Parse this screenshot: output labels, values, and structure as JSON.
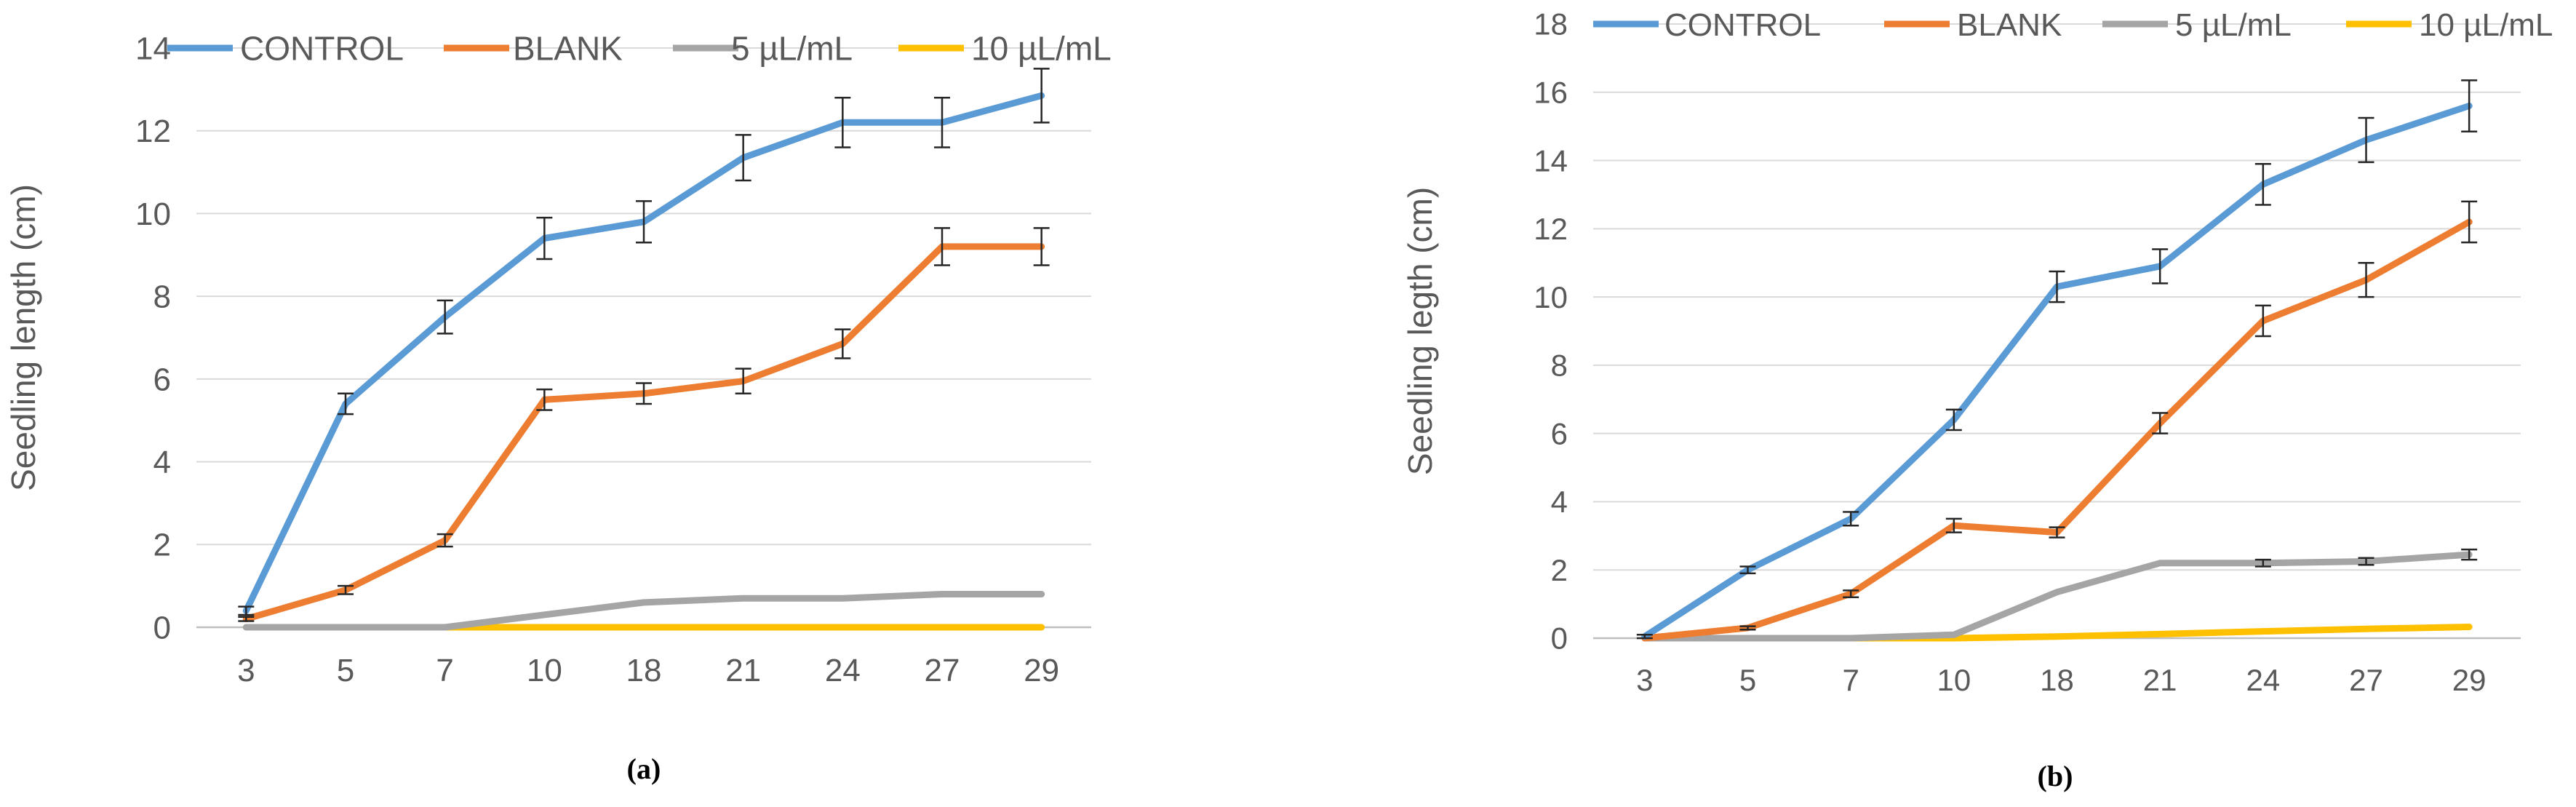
{
  "chart_data": [
    {
      "type": "line",
      "caption": "(a)",
      "ylabel": "Seedling length (cm)",
      "xlabel": "",
      "categories": [
        "3",
        "5",
        "7",
        "10",
        "18",
        "21",
        "24",
        "27",
        "29"
      ],
      "ylim": [
        0,
        14
      ],
      "yticks": [
        0,
        2,
        4,
        6,
        8,
        10,
        12,
        14
      ],
      "grid": true,
      "legend": "top",
      "series": [
        {
          "name": "CONTROL",
          "color": "#5B9BD5",
          "values": [
            0.4,
            5.4,
            7.5,
            9.4,
            9.8,
            11.35,
            12.2,
            12.2,
            12.85
          ],
          "errors": [
            0.1,
            0.25,
            0.4,
            0.5,
            0.5,
            0.55,
            0.6,
            0.6,
            0.65
          ]
        },
        {
          "name": "BLANK",
          "color": "#ED7D31",
          "values": [
            0.2,
            0.9,
            2.1,
            5.5,
            5.65,
            5.95,
            6.85,
            9.2,
            9.2
          ],
          "errors": [
            0.05,
            0.1,
            0.15,
            0.25,
            0.25,
            0.3,
            0.35,
            0.45,
            0.45
          ]
        },
        {
          "name": "5 µL/mL",
          "color": "#A5A5A5",
          "values": [
            0,
            0,
            0,
            0.3,
            0.6,
            0.7,
            0.7,
            0.8,
            0.8
          ],
          "errors": [
            0,
            0,
            0,
            0,
            0,
            0,
            0,
            0,
            0
          ]
        },
        {
          "name": "10 µL/mL",
          "color": "#FFC000",
          "values": [
            0,
            0,
            0,
            0,
            0,
            0,
            0,
            0,
            0
          ],
          "errors": [
            0,
            0,
            0,
            0,
            0,
            0,
            0,
            0,
            0
          ]
        }
      ]
    },
    {
      "type": "line",
      "caption": "(b)",
      "ylabel": "Seedling legth (cm)",
      "xlabel": "",
      "categories": [
        "3",
        "5",
        "7",
        "10",
        "18",
        "21",
        "24",
        "27",
        "29"
      ],
      "ylim": [
        0,
        18
      ],
      "yticks": [
        0,
        2,
        4,
        6,
        8,
        10,
        12,
        14,
        16,
        18
      ],
      "grid": true,
      "legend": "top",
      "series": [
        {
          "name": "CONTROL",
          "color": "#5B9BD5",
          "values": [
            0.05,
            2.0,
            3.5,
            6.4,
            10.3,
            10.9,
            13.3,
            14.6,
            15.6
          ],
          "errors": [
            0.05,
            0.1,
            0.2,
            0.3,
            0.45,
            0.5,
            0.6,
            0.65,
            0.75
          ]
        },
        {
          "name": "BLANK",
          "color": "#ED7D31",
          "values": [
            0.0,
            0.3,
            1.3,
            3.3,
            3.1,
            6.3,
            9.3,
            10.5,
            12.2
          ],
          "errors": [
            0.0,
            0.05,
            0.1,
            0.2,
            0.15,
            0.3,
            0.45,
            0.5,
            0.6
          ]
        },
        {
          "name": "5 µL/mL",
          "color": "#A5A5A5",
          "values": [
            0.0,
            0.0,
            0.0,
            0.1,
            1.35,
            2.2,
            2.2,
            2.25,
            2.45
          ],
          "errors": [
            0,
            0,
            0,
            0,
            0,
            0,
            0.1,
            0.1,
            0.15
          ]
        },
        {
          "name": "10 µL/mL",
          "color": "#FFC000",
          "values": [
            0.0,
            0.0,
            0.0,
            0.0,
            0.05,
            0.12,
            0.2,
            0.27,
            0.33
          ],
          "errors": [
            0,
            0,
            0,
            0,
            0,
            0,
            0,
            0,
            0
          ]
        }
      ]
    }
  ]
}
